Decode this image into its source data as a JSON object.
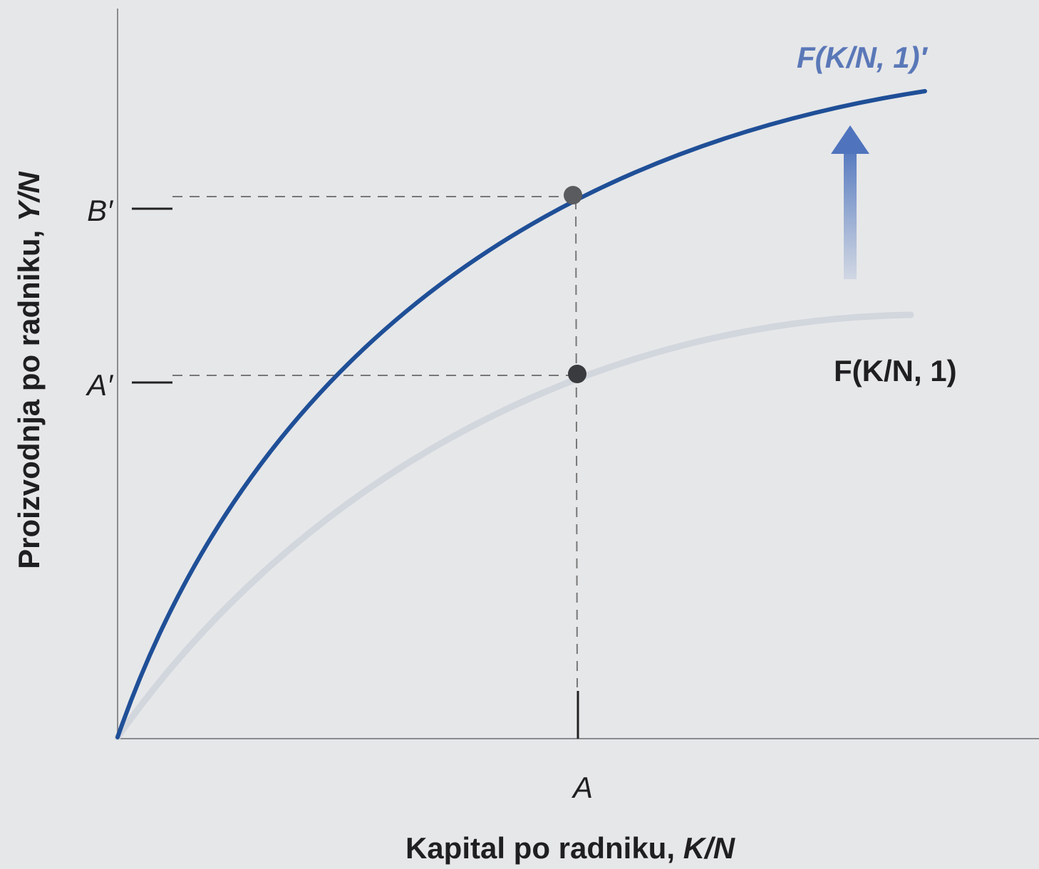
{
  "y_axis": {
    "label": "Proizvodnja po radniku,",
    "label_var": "Y/N",
    "ticks": [
      "B′",
      "A′"
    ]
  },
  "x_axis": {
    "label": "Kapital po radniku,",
    "label_var": "K/N",
    "ticks": [
      "A"
    ]
  },
  "curves": [
    {
      "label": "F(K/N, 1)′"
    },
    {
      "label": "F(K/N, 1)"
    }
  ]
}
